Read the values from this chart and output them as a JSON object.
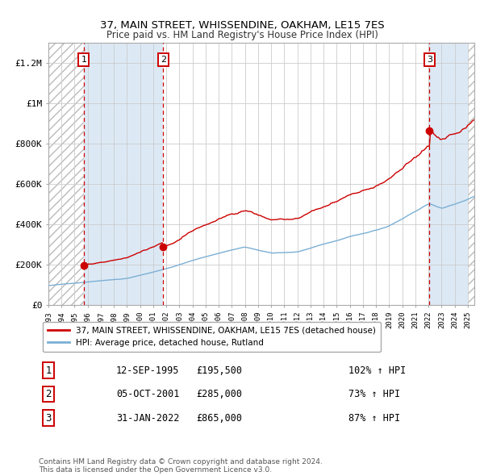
{
  "title": "37, MAIN STREET, WHISSENDINE, OAKHAM, LE15 7ES",
  "subtitle": "Price paid vs. HM Land Registry's House Price Index (HPI)",
  "legend_line1": "37, MAIN STREET, WHISSENDINE, OAKHAM, LE15 7ES (detached house)",
  "legend_line2": "HPI: Average price, detached house, Rutland",
  "footer": "Contains HM Land Registry data © Crown copyright and database right 2024.\nThis data is licensed under the Open Government Licence v3.0.",
  "transactions": [
    {
      "num": 1,
      "date": "12-SEP-1995",
      "price": 195500,
      "hpi_pct": "102% ↑ HPI",
      "x_year": 1995.7
    },
    {
      "num": 2,
      "date": "05-OCT-2001",
      "price": 285000,
      "hpi_pct": "73% ↑ HPI",
      "x_year": 2001.76
    },
    {
      "num": 3,
      "date": "31-JAN-2022",
      "price": 865000,
      "hpi_pct": "87% ↑ HPI",
      "x_year": 2022.08
    }
  ],
  "hpi_color": "#7bafd4",
  "price_color": "#cc0000",
  "bg_stripe_color": "#dce9f5",
  "grid_color": "#cccccc",
  "hatch_color": "#bbbbbb",
  "ylim": [
    0,
    1300000
  ],
  "xlim_start": 1993.0,
  "xlim_end": 2025.5,
  "yticks": [
    0,
    200000,
    400000,
    600000,
    800000,
    1000000,
    1200000
  ],
  "ytick_labels": [
    "£0",
    "£200K",
    "£400K",
    "£600K",
    "£800K",
    "£1M",
    "£1.2M"
  ]
}
